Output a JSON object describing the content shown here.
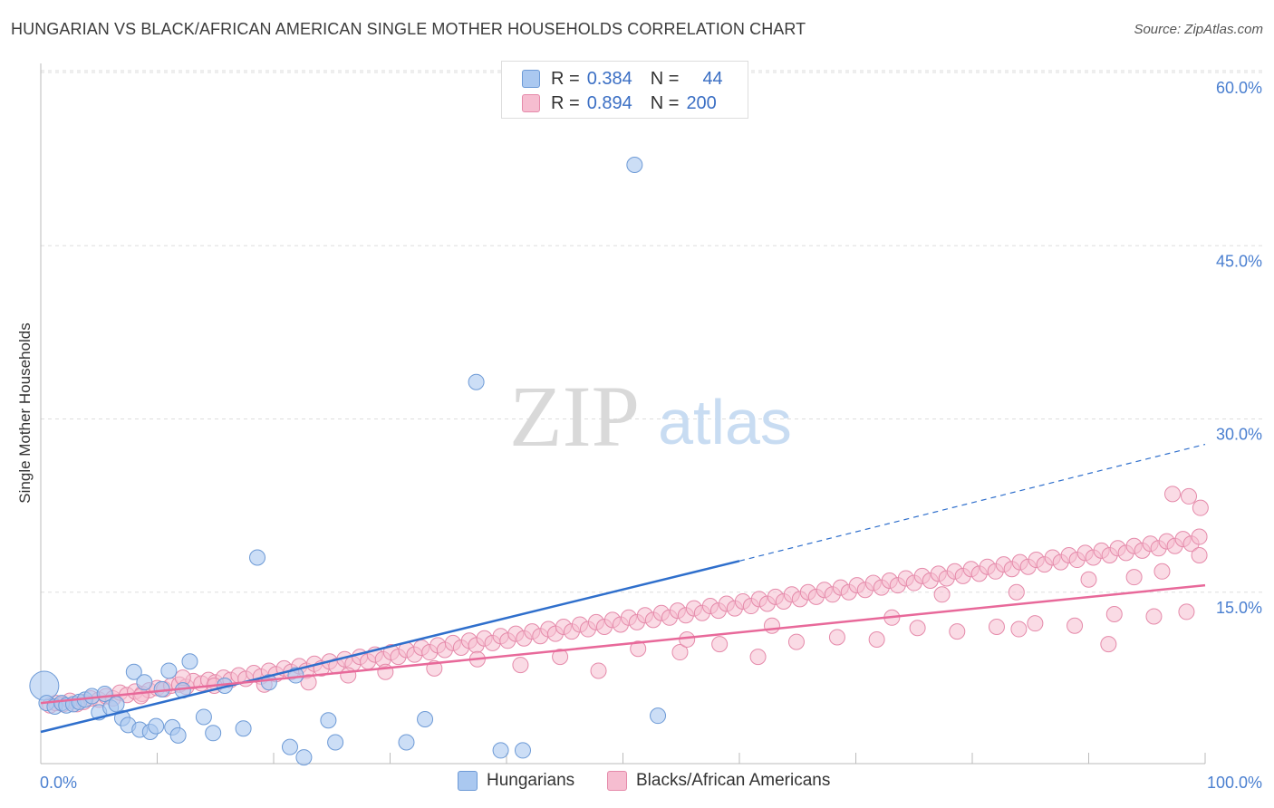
{
  "title": "HUNGARIAN VS BLACK/AFRICAN AMERICAN SINGLE MOTHER HOUSEHOLDS CORRELATION CHART",
  "source": "Source: ZipAtlas.com",
  "watermark": {
    "zip": "ZIP",
    "atlas": "atlas"
  },
  "legend_stats": [
    {
      "r_label": "R =",
      "r_value": "0.384",
      "n_label": "N =",
      "n_value": "44"
    },
    {
      "r_label": "R =",
      "r_value": "0.894",
      "n_label": "N =",
      "n_value": "200"
    }
  ],
  "legend_bottom": [
    "Hungarians",
    "Blacks/African Americans"
  ],
  "colors": {
    "hungarian_fill": "#aac8f0",
    "hungarian_stroke": "#6d9ad6",
    "hungarian_line": "#2f6fcc",
    "black_fill": "#f6bdd0",
    "black_stroke": "#e58aaa",
    "black_line": "#e8699a",
    "tick_label": "#4a7fd0",
    "grid": "#dddddd"
  },
  "chart_data": {
    "type": "scatter",
    "title": "HUNGARIAN VS BLACK/AFRICAN AMERICAN SINGLE MOTHER HOUSEHOLDS CORRELATION CHART",
    "xlabel": "",
    "ylabel": "Single Mother Households",
    "x_tick_labels": [
      "0.0%",
      "100.0%"
    ],
    "y_tick_labels": [
      "15.0%",
      "30.0%",
      "45.0%",
      "60.0%"
    ],
    "y_ticks": [
      15,
      30,
      45,
      60
    ],
    "xlim": [
      0,
      100
    ],
    "ylim": [
      0,
      62
    ],
    "grid": "horizontal dashed",
    "legend_position": "top-center",
    "series": [
      {
        "name": "Hungarians",
        "r": 0.384,
        "n": 44,
        "trend": {
          "x0": 0,
          "y0": 2.9,
          "x1": 60,
          "y1": 17.7,
          "dashed_to_x": 100,
          "dashed_to_y": 27.8
        },
        "points": [
          [
            0.3,
            6.9
          ],
          [
            0.5,
            5.4
          ],
          [
            1.2,
            5.1
          ],
          [
            1.8,
            5.4
          ],
          [
            2.2,
            5.2
          ],
          [
            2.8,
            5.3
          ],
          [
            3.3,
            5.5
          ],
          [
            3.8,
            5.7
          ],
          [
            4.4,
            6.0
          ],
          [
            5.0,
            4.6
          ],
          [
            5.5,
            6.2
          ],
          [
            6.0,
            5.0
          ],
          [
            6.5,
            5.3
          ],
          [
            7.0,
            4.1
          ],
          [
            7.5,
            3.5
          ],
          [
            8.0,
            8.1
          ],
          [
            8.5,
            3.1
          ],
          [
            8.9,
            7.2
          ],
          [
            9.4,
            2.9
          ],
          [
            9.9,
            3.4
          ],
          [
            10.4,
            6.6
          ],
          [
            11.0,
            8.2
          ],
          [
            11.3,
            3.3
          ],
          [
            11.8,
            2.6
          ],
          [
            12.2,
            6.5
          ],
          [
            12.8,
            9.0
          ],
          [
            14.0,
            4.2
          ],
          [
            14.8,
            2.8
          ],
          [
            15.8,
            6.9
          ],
          [
            17.4,
            3.2
          ],
          [
            18.6,
            18.0
          ],
          [
            19.6,
            7.2
          ],
          [
            21.4,
            1.6
          ],
          [
            21.9,
            7.8
          ],
          [
            22.6,
            0.7
          ],
          [
            24.7,
            3.9
          ],
          [
            25.3,
            2.0
          ],
          [
            31.4,
            2.0
          ],
          [
            33.0,
            4.0
          ],
          [
            37.4,
            33.2
          ],
          [
            39.5,
            1.3
          ],
          [
            41.4,
            1.3
          ],
          [
            51.0,
            52.0
          ],
          [
            53.0,
            4.3
          ]
        ]
      },
      {
        "name": "Blacks/African Americans",
        "r": 0.894,
        "n": 200,
        "trend": {
          "x0": 0,
          "y0": 5.4,
          "x1": 100,
          "y1": 15.6
        },
        "points": [
          [
            0.8,
            5.2
          ],
          [
            1.3,
            5.4
          ],
          [
            1.9,
            5.3
          ],
          [
            2.5,
            5.6
          ],
          [
            3.1,
            5.3
          ],
          [
            3.7,
            5.5
          ],
          [
            4.3,
            5.8
          ],
          [
            5.0,
            5.7
          ],
          [
            5.6,
            6.0
          ],
          [
            6.2,
            5.8
          ],
          [
            6.8,
            6.3
          ],
          [
            7.4,
            6.1
          ],
          [
            8.1,
            6.4
          ],
          [
            8.7,
            6.2
          ],
          [
            9.3,
            6.5
          ],
          [
            10.0,
            6.7
          ],
          [
            10.6,
            6.6
          ],
          [
            11.2,
            6.9
          ],
          [
            11.9,
            7.0
          ],
          [
            12.5,
            6.8
          ],
          [
            13.1,
            7.3
          ],
          [
            13.8,
            7.1
          ],
          [
            14.4,
            7.4
          ],
          [
            15.0,
            7.2
          ],
          [
            15.7,
            7.6
          ],
          [
            16.3,
            7.4
          ],
          [
            17.0,
            7.8
          ],
          [
            17.6,
            7.5
          ],
          [
            18.3,
            8.0
          ],
          [
            18.9,
            7.7
          ],
          [
            19.6,
            8.2
          ],
          [
            20.2,
            7.9
          ],
          [
            20.9,
            8.4
          ],
          [
            21.5,
            8.1
          ],
          [
            22.2,
            8.6
          ],
          [
            22.8,
            8.2
          ],
          [
            23.5,
            8.8
          ],
          [
            24.1,
            8.4
          ],
          [
            24.8,
            9.0
          ],
          [
            25.4,
            8.6
          ],
          [
            26.1,
            9.2
          ],
          [
            26.8,
            8.8
          ],
          [
            27.4,
            9.4
          ],
          [
            28.1,
            9.0
          ],
          [
            28.7,
            9.6
          ],
          [
            29.4,
            9.2
          ],
          [
            30.1,
            9.8
          ],
          [
            30.7,
            9.4
          ],
          [
            31.4,
            10.0
          ],
          [
            32.1,
            9.6
          ],
          [
            32.7,
            10.2
          ],
          [
            33.4,
            9.8
          ],
          [
            34.1,
            10.4
          ],
          [
            34.7,
            10.0
          ],
          [
            35.4,
            10.6
          ],
          [
            36.1,
            10.2
          ],
          [
            36.8,
            10.8
          ],
          [
            37.4,
            10.4
          ],
          [
            38.1,
            11.0
          ],
          [
            38.8,
            10.6
          ],
          [
            39.5,
            11.2
          ],
          [
            40.1,
            10.8
          ],
          [
            40.8,
            11.4
          ],
          [
            41.5,
            11.0
          ],
          [
            42.2,
            11.6
          ],
          [
            42.9,
            11.2
          ],
          [
            43.6,
            11.8
          ],
          [
            44.2,
            11.4
          ],
          [
            44.9,
            12.0
          ],
          [
            45.6,
            11.6
          ],
          [
            46.3,
            12.2
          ],
          [
            47.0,
            11.8
          ],
          [
            47.7,
            12.4
          ],
          [
            48.4,
            12.0
          ],
          [
            49.1,
            12.6
          ],
          [
            49.8,
            12.2
          ],
          [
            50.5,
            12.8
          ],
          [
            51.2,
            12.4
          ],
          [
            51.9,
            13.0
          ],
          [
            52.6,
            12.6
          ],
          [
            53.3,
            13.2
          ],
          [
            54.0,
            12.8
          ],
          [
            54.7,
            13.4
          ],
          [
            55.4,
            13.0
          ],
          [
            56.1,
            13.6
          ],
          [
            56.8,
            13.2
          ],
          [
            57.5,
            13.8
          ],
          [
            58.2,
            13.4
          ],
          [
            58.9,
            14.0
          ],
          [
            59.6,
            13.6
          ],
          [
            60.3,
            14.2
          ],
          [
            61.0,
            13.8
          ],
          [
            61.7,
            14.4
          ],
          [
            62.4,
            14.0
          ],
          [
            63.1,
            14.6
          ],
          [
            63.8,
            14.2
          ],
          [
            64.5,
            14.8
          ],
          [
            65.2,
            14.4
          ],
          [
            65.9,
            15.0
          ],
          [
            66.6,
            14.6
          ],
          [
            67.3,
            15.2
          ],
          [
            68.0,
            14.8
          ],
          [
            68.7,
            15.4
          ],
          [
            69.4,
            15.0
          ],
          [
            70.1,
            15.6
          ],
          [
            70.8,
            15.2
          ],
          [
            71.5,
            15.8
          ],
          [
            72.2,
            15.4
          ],
          [
            72.9,
            16.0
          ],
          [
            73.6,
            15.6
          ],
          [
            74.3,
            16.2
          ],
          [
            75.0,
            15.8
          ],
          [
            75.7,
            16.4
          ],
          [
            76.4,
            16.0
          ],
          [
            77.1,
            16.6
          ],
          [
            77.8,
            16.2
          ],
          [
            78.5,
            16.8
          ],
          [
            79.2,
            16.4
          ],
          [
            79.9,
            17.0
          ],
          [
            80.6,
            16.6
          ],
          [
            81.3,
            17.2
          ],
          [
            82.0,
            16.8
          ],
          [
            82.7,
            17.4
          ],
          [
            83.4,
            17.0
          ],
          [
            84.1,
            17.6
          ],
          [
            84.8,
            17.2
          ],
          [
            85.5,
            17.8
          ],
          [
            86.2,
            17.4
          ],
          [
            86.9,
            18.0
          ],
          [
            87.6,
            17.6
          ],
          [
            88.3,
            18.2
          ],
          [
            89.0,
            17.8
          ],
          [
            89.7,
            18.4
          ],
          [
            90.4,
            18.0
          ],
          [
            91.1,
            18.6
          ],
          [
            91.8,
            18.2
          ],
          [
            92.5,
            18.8
          ],
          [
            93.2,
            18.4
          ],
          [
            93.9,
            19.0
          ],
          [
            94.6,
            18.6
          ],
          [
            95.3,
            19.2
          ],
          [
            96.0,
            18.8
          ],
          [
            96.7,
            19.4
          ],
          [
            97.4,
            19.0
          ],
          [
            98.1,
            19.6
          ],
          [
            98.8,
            19.2
          ],
          [
            99.5,
            19.8
          ],
          [
            8.6,
            6.0
          ],
          [
            12.2,
            7.6
          ],
          [
            14.9,
            6.9
          ],
          [
            19.2,
            7.0
          ],
          [
            23.0,
            7.2
          ],
          [
            26.4,
            7.8
          ],
          [
            29.6,
            8.1
          ],
          [
            33.8,
            8.4
          ],
          [
            37.5,
            9.2
          ],
          [
            41.2,
            8.7
          ],
          [
            44.6,
            9.4
          ],
          [
            47.9,
            8.2
          ],
          [
            51.3,
            10.1
          ],
          [
            54.9,
            9.8
          ],
          [
            58.3,
            10.5
          ],
          [
            61.6,
            9.4
          ],
          [
            64.9,
            10.7
          ],
          [
            68.4,
            11.1
          ],
          [
            71.8,
            10.9
          ],
          [
            75.3,
            11.9
          ],
          [
            78.7,
            11.6
          ],
          [
            82.1,
            12.0
          ],
          [
            85.4,
            12.3
          ],
          [
            88.8,
            12.1
          ],
          [
            92.2,
            13.1
          ],
          [
            95.6,
            12.9
          ],
          [
            98.4,
            13.3
          ],
          [
            77.4,
            14.8
          ],
          [
            83.8,
            15.0
          ],
          [
            90.0,
            16.1
          ],
          [
            93.9,
            16.3
          ],
          [
            96.3,
            16.8
          ],
          [
            97.2,
            23.5
          ],
          [
            98.6,
            23.3
          ],
          [
            99.6,
            22.3
          ],
          [
            99.5,
            18.2
          ],
          [
            91.7,
            10.5
          ],
          [
            84.0,
            11.8
          ],
          [
            73.1,
            12.8
          ],
          [
            62.8,
            12.1
          ],
          [
            55.5,
            10.9
          ]
        ]
      }
    ]
  }
}
